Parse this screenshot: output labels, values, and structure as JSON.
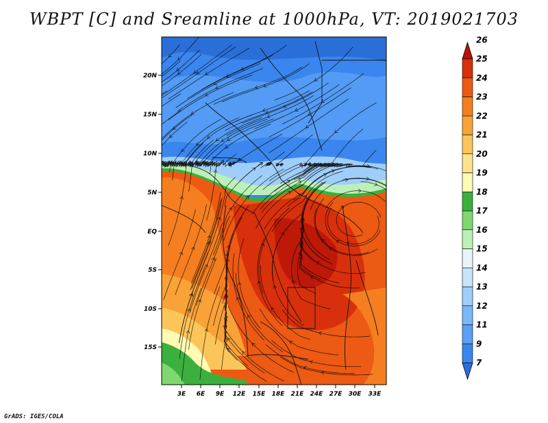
{
  "title": "WBPT [C] and Sreamline at 1000hPa, VT: 2019021703",
  "credit": "GrADS: IGES/COLA",
  "map": {
    "lat_labels": [
      "20N",
      "15N",
      "10N",
      "5N",
      "EQ",
      "5S",
      "10S",
      "15S"
    ],
    "lon_labels": [
      "3E",
      "6E",
      "9E",
      "12E",
      "15E",
      "18E",
      "21E",
      "24E",
      "27E",
      "30E",
      "33E"
    ]
  },
  "colorbar": {
    "levels": [
      "7",
      "9",
      "11",
      "12",
      "13",
      "14",
      "15",
      "16",
      "17",
      "18",
      "19",
      "20",
      "21",
      "22",
      "23",
      "24",
      "25",
      "26"
    ],
    "colors": [
      "#2a6fd8",
      "#3a86ee",
      "#5aa0f5",
      "#7ab8fa",
      "#a0cefa",
      "#c8e4fa",
      "#e8f4fa",
      "#bdf0b8",
      "#7fd86f",
      "#3cb03c",
      "#fffab4",
      "#ffe28c",
      "#fcc55a",
      "#f9a238",
      "#f57f20",
      "#ec5a14",
      "#d8300c",
      "#b81408"
    ]
  }
}
